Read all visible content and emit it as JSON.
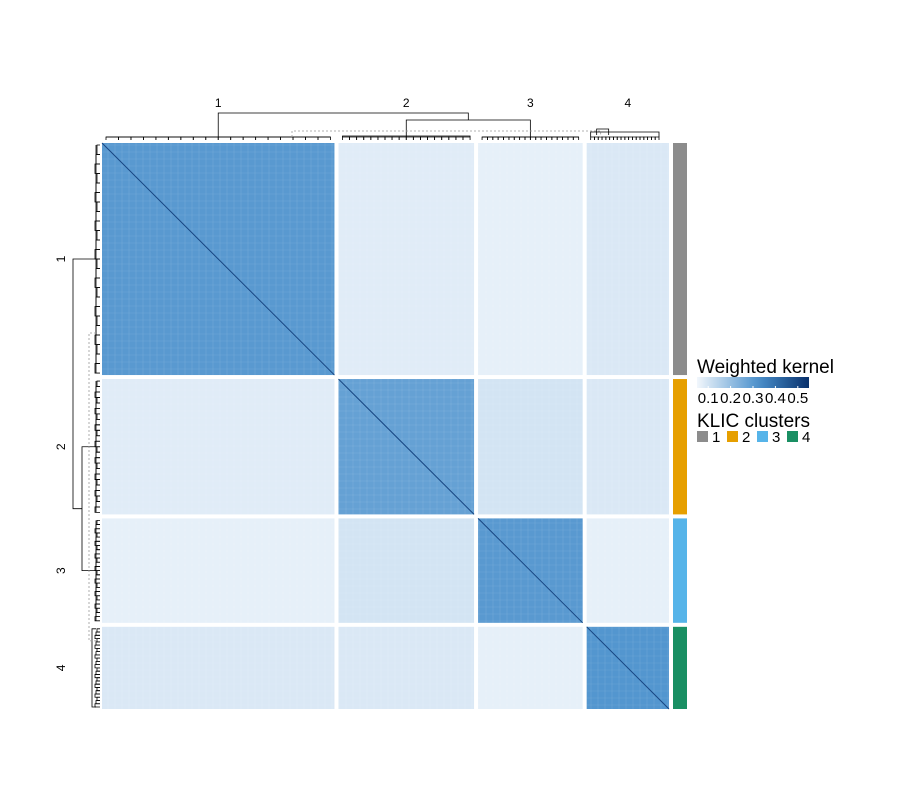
{
  "chart_data": {
    "type": "heatmap",
    "title": "",
    "row_clusters": [
      "1",
      "2",
      "3",
      "4"
    ],
    "column_clusters": [
      "1",
      "2",
      "3",
      "4"
    ],
    "cluster_sizes": [
      240,
      140,
      108,
      85
    ],
    "block_values": [
      [
        0.3,
        0.08,
        0.07,
        0.09
      ],
      [
        0.08,
        0.28,
        0.1,
        0.09
      ],
      [
        0.07,
        0.1,
        0.3,
        0.07
      ],
      [
        0.09,
        0.09,
        0.07,
        0.31
      ]
    ],
    "diagonal_value": 0.5,
    "color_scale": {
      "title": "Weighted kernel",
      "ticks": [
        "0.1",
        "0.2",
        "0.3",
        "0.4",
        "0.5"
      ],
      "range": [
        0.05,
        0.55
      ],
      "low_color": "#f2f7fc",
      "high_color": "#08306b"
    },
    "annotation": {
      "title": "KLIC clusters",
      "items": [
        {
          "label": "1",
          "color": "#8c8c8c"
        },
        {
          "label": "2",
          "color": "#e69f00"
        },
        {
          "label": "3",
          "color": "#56b4e9"
        },
        {
          "label": "4",
          "color": "#1a8f63"
        }
      ]
    }
  }
}
